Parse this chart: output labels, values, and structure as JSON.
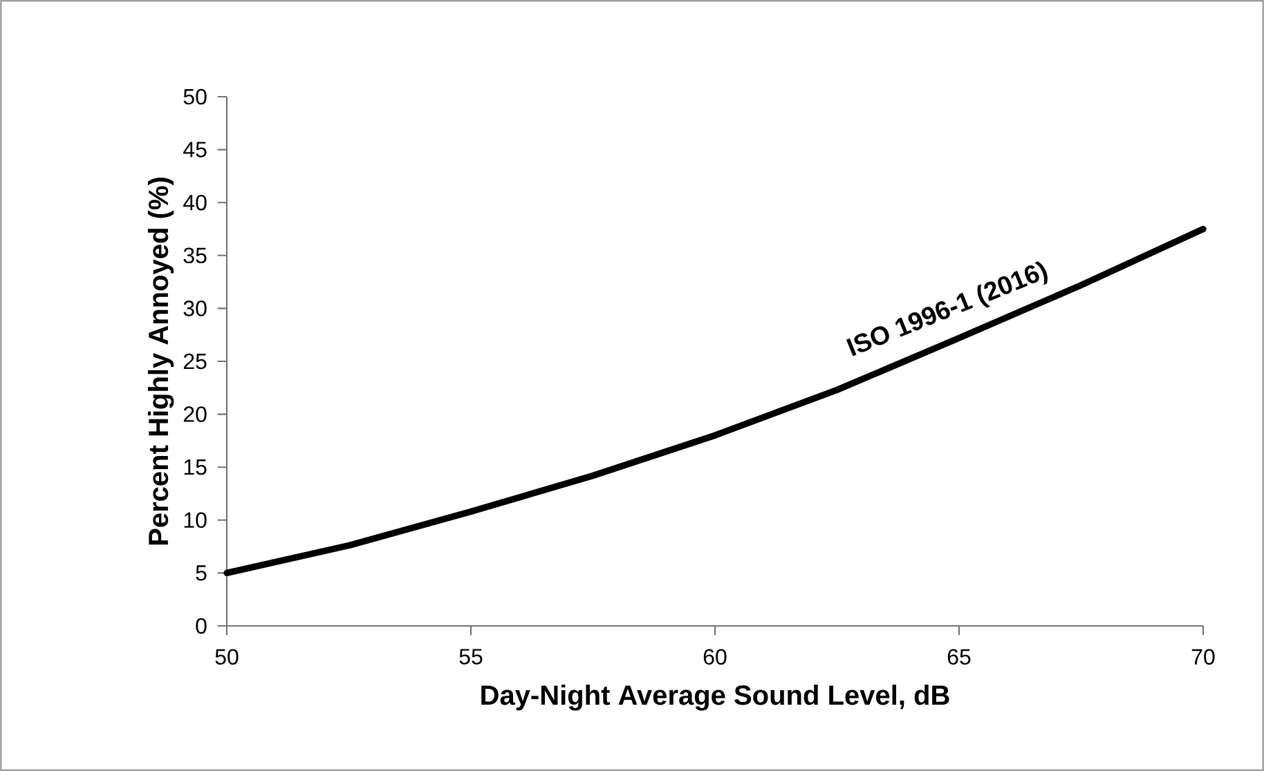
{
  "chart_data": {
    "type": "line",
    "xlabel": "Day-Night Average Sound Level, dB",
    "ylabel": "Percent Highly Annoyed (%)",
    "x": [
      50,
      52.5,
      55,
      57.5,
      60,
      62.5,
      65,
      67.5,
      70
    ],
    "series": [
      {
        "name": "ISO 1996-1 (2016)",
        "color": "#000000",
        "values": [
          5,
          7.6,
          10.8,
          14.2,
          18,
          22.3,
          27.2,
          32.2,
          37.5
        ]
      }
    ],
    "xlim": [
      50,
      70
    ],
    "xticks": [
      50,
      55,
      60,
      65,
      70
    ],
    "ylim": [
      0,
      50
    ],
    "yticks": [
      0,
      5,
      10,
      15,
      20,
      25,
      30,
      35,
      40,
      45,
      50
    ],
    "grid": false,
    "legend": false,
    "marker": "none",
    "line_style": "solid"
  }
}
